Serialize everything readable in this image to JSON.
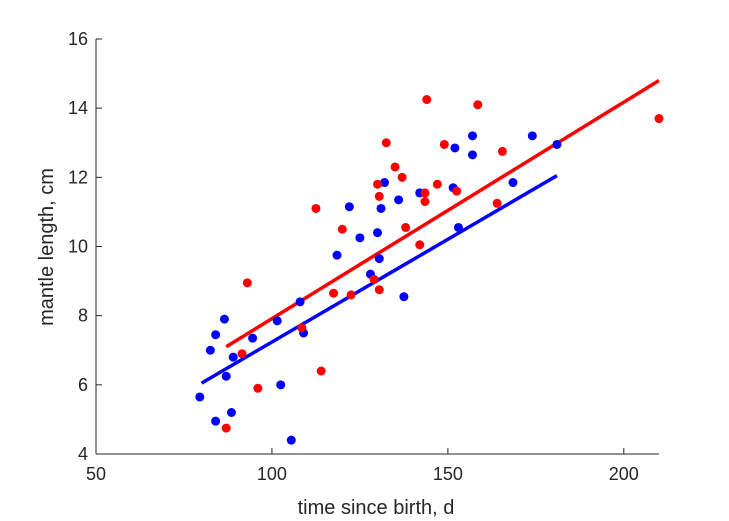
{
  "chart_data": {
    "type": "scatter",
    "title": "",
    "xlabel": "time since birth, d",
    "ylabel": "mantle length, cm",
    "xlim": [
      50,
      210
    ],
    "ylim": [
      4,
      16
    ],
    "xticks": [
      50,
      100,
      150,
      200
    ],
    "yticks": [
      4,
      6,
      8,
      10,
      12,
      14,
      16
    ],
    "grid": false,
    "legend": null,
    "series": [
      {
        "name": "blue",
        "color": "#0000ff",
        "points": [
          [
            79.5,
            5.65
          ],
          [
            82.5,
            7.0
          ],
          [
            84,
            4.95
          ],
          [
            84,
            7.45
          ],
          [
            86.5,
            7.9
          ],
          [
            87,
            6.25
          ],
          [
            88.5,
            5.2
          ],
          [
            89,
            6.8
          ],
          [
            94.5,
            7.35
          ],
          [
            101.5,
            7.85
          ],
          [
            102.5,
            6.0
          ],
          [
            105.5,
            4.4
          ],
          [
            108,
            8.4
          ],
          [
            109,
            7.5
          ],
          [
            118.5,
            9.75
          ],
          [
            122,
            11.15
          ],
          [
            125,
            10.25
          ],
          [
            128,
            9.2
          ],
          [
            130,
            10.4
          ],
          [
            130.5,
            9.65
          ],
          [
            131,
            11.1
          ],
          [
            132,
            11.85
          ],
          [
            136,
            11.35
          ],
          [
            137.5,
            8.55
          ],
          [
            142,
            11.55
          ],
          [
            151.5,
            11.7
          ],
          [
            152,
            12.85
          ],
          [
            153,
            10.55
          ],
          [
            157,
            13.2
          ],
          [
            157,
            12.65
          ],
          [
            168.5,
            11.85
          ],
          [
            174,
            13.2
          ],
          [
            181,
            12.95
          ]
        ],
        "fit": [
          [
            80,
            6.05
          ],
          [
            181,
            12.05
          ]
        ]
      },
      {
        "name": "red",
        "color": "#ff0000",
        "points": [
          [
            87,
            4.75
          ],
          [
            91.5,
            6.9
          ],
          [
            93,
            8.95
          ],
          [
            96,
            5.9
          ],
          [
            108.5,
            7.65
          ],
          [
            112.5,
            11.1
          ],
          [
            114,
            6.4
          ],
          [
            117.5,
            8.65
          ],
          [
            120,
            10.5
          ],
          [
            122.5,
            8.6
          ],
          [
            129,
            9.05
          ],
          [
            130,
            11.8
          ],
          [
            130.5,
            8.75
          ],
          [
            130.5,
            11.45
          ],
          [
            132.5,
            13.0
          ],
          [
            135,
            12.3
          ],
          [
            137,
            12.0
          ],
          [
            138,
            10.55
          ],
          [
            142,
            10.05
          ],
          [
            143.5,
            11.3
          ],
          [
            143.5,
            11.55
          ],
          [
            144,
            14.25
          ],
          [
            147,
            11.8
          ],
          [
            149,
            12.95
          ],
          [
            152.5,
            11.6
          ],
          [
            158.5,
            14.1
          ],
          [
            164,
            11.25
          ],
          [
            165.5,
            12.75
          ],
          [
            210,
            13.7
          ]
        ],
        "fit": [
          [
            87,
            7.1
          ],
          [
            210,
            14.8
          ]
        ]
      }
    ]
  }
}
